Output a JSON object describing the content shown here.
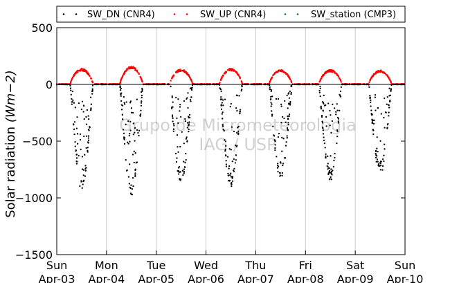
{
  "chart_data": {
    "type": "scatter",
    "title": "",
    "xlabel": "",
    "ylabel": "Solar radiation",
    "ylabel_unit": "(Wm−2)",
    "ylim": [
      -1500,
      500
    ],
    "yticks": [
      500,
      0,
      -500,
      -1000,
      -1500
    ],
    "ytick_labels": [
      "500",
      "0",
      "−500",
      "−1000",
      "−1500"
    ],
    "xlim": [
      "2014-04-03",
      "2014-04-10"
    ],
    "xticks": [
      {
        "day": "Sun",
        "date": "Apr-03"
      },
      {
        "day": "Mon",
        "date": "Apr-04"
      },
      {
        "day": "Tue",
        "date": "Apr-05"
      },
      {
        "day": "Wed",
        "date": "Apr-06"
      },
      {
        "day": "Thu",
        "date": "Apr-07"
      },
      {
        "day": "Fri",
        "date": "Apr-08"
      },
      {
        "day": "Sat",
        "date": "Apr-09"
      },
      {
        "day": "Sun",
        "date": "Apr-10"
      }
    ],
    "grid": "vertical",
    "zero_line": true,
    "legend_position": "top",
    "series": [
      {
        "name": "SW_DN (CNR4)",
        "color": "#000000",
        "marker": "dot",
        "days": [
          {
            "date": "Apr-03",
            "min": -930
          },
          {
            "date": "Apr-04",
            "min": -990
          },
          {
            "date": "Apr-05",
            "min": -870
          },
          {
            "date": "Apr-06",
            "min": -910
          },
          {
            "date": "Apr-07",
            "min": -840
          },
          {
            "date": "Apr-08",
            "min": -850
          },
          {
            "date": "Apr-09",
            "min": -800
          }
        ]
      },
      {
        "name": "SW_UP (CNR4)",
        "color": "#ff0000",
        "marker": "dot",
        "days": [
          {
            "date": "Apr-03",
            "max": 140
          },
          {
            "date": "Apr-04",
            "max": 160
          },
          {
            "date": "Apr-05",
            "max": 135
          },
          {
            "date": "Apr-06",
            "max": 140
          },
          {
            "date": "Apr-07",
            "max": 130
          },
          {
            "date": "Apr-08",
            "max": 130
          },
          {
            "date": "Apr-09",
            "max": 125
          }
        ]
      },
      {
        "name": "SW_station (CMP3)",
        "color": "#008000",
        "marker": "dot",
        "days": []
      }
    ],
    "watermark": [
      "Grupo de Micrometeorologia",
      "IAG / USP"
    ]
  }
}
